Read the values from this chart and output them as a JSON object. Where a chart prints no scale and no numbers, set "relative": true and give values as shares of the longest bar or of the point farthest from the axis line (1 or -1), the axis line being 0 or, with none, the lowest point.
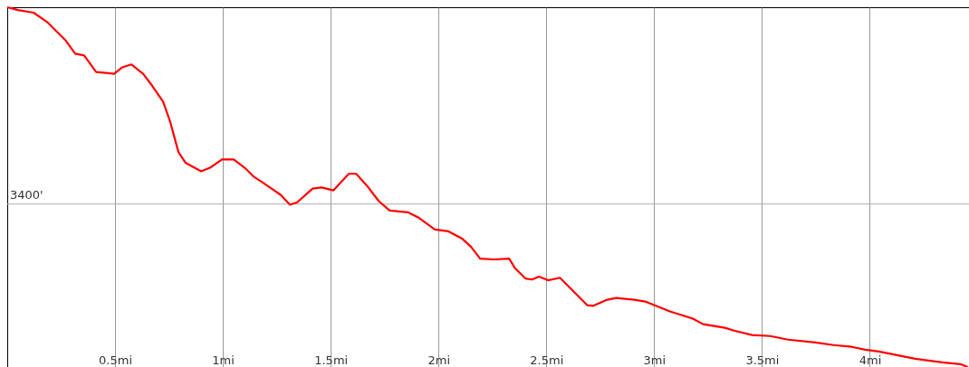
{
  "chart_data": {
    "type": "line",
    "relative": true,
    "grid": "x",
    "xlim": [
      0,
      4.46
    ],
    "xticks": [
      {
        "value": 0.5,
        "label": "0.5mi"
      },
      {
        "value": 1,
        "label": "1mi"
      },
      {
        "value": 1.5,
        "label": "1.5mi"
      },
      {
        "value": 2,
        "label": "2mi"
      },
      {
        "value": 2.5,
        "label": "2.5mi"
      },
      {
        "value": 3,
        "label": "3mi"
      },
      {
        "value": 3.5,
        "label": "3.5mi"
      },
      {
        "value": 4,
        "label": "4mi"
      }
    ],
    "ref_lines": [
      {
        "axis": "y",
        "value": 0.453,
        "color": "#aaaaaa"
      }
    ],
    "annotations": [
      "3400'"
    ],
    "series": [
      {
        "color": "#ff0000",
        "x": [
          0.0,
          0.05,
          0.122,
          0.185,
          0.218,
          0.269,
          0.315,
          0.357,
          0.412,
          0.496,
          0.534,
          0.576,
          0.63,
          0.672,
          0.723,
          0.756,
          0.794,
          0.828,
          0.899,
          0.941,
          0.996,
          1.05,
          1.101,
          1.143,
          1.206,
          1.269,
          1.311,
          1.345,
          1.416,
          1.458,
          1.513,
          1.584,
          1.618,
          1.668,
          1.723,
          1.773,
          1.857,
          1.908,
          1.983,
          2.046,
          2.109,
          2.151,
          2.193,
          2.256,
          2.328,
          2.353,
          2.403,
          2.433,
          2.466,
          2.508,
          2.563,
          2.613,
          2.689,
          2.718,
          2.782,
          2.824,
          2.908,
          2.958,
          3.0,
          3.076,
          3.181,
          3.227,
          3.328,
          3.37,
          3.454,
          3.538,
          3.622,
          3.748,
          3.832,
          3.916,
          3.979,
          4.042,
          4.126,
          4.21,
          4.336,
          4.42,
          4.454
        ],
        "values": [
          1.0,
          0.992,
          0.985,
          0.959,
          0.939,
          0.909,
          0.871,
          0.866,
          0.82,
          0.815,
          0.833,
          0.841,
          0.815,
          0.782,
          0.737,
          0.681,
          0.597,
          0.567,
          0.544,
          0.554,
          0.577,
          0.577,
          0.554,
          0.529,
          0.504,
          0.478,
          0.451,
          0.458,
          0.496,
          0.499,
          0.491,
          0.537,
          0.537,
          0.504,
          0.461,
          0.435,
          0.43,
          0.415,
          0.382,
          0.377,
          0.357,
          0.334,
          0.301,
          0.299,
          0.301,
          0.276,
          0.246,
          0.243,
          0.251,
          0.241,
          0.248,
          0.218,
          0.172,
          0.17,
          0.187,
          0.192,
          0.187,
          0.182,
          0.172,
          0.154,
          0.134,
          0.119,
          0.109,
          0.101,
          0.089,
          0.086,
          0.076,
          0.068,
          0.061,
          0.056,
          0.048,
          0.043,
          0.033,
          0.023,
          0.013,
          0.008,
          0.0
        ]
      }
    ]
  }
}
